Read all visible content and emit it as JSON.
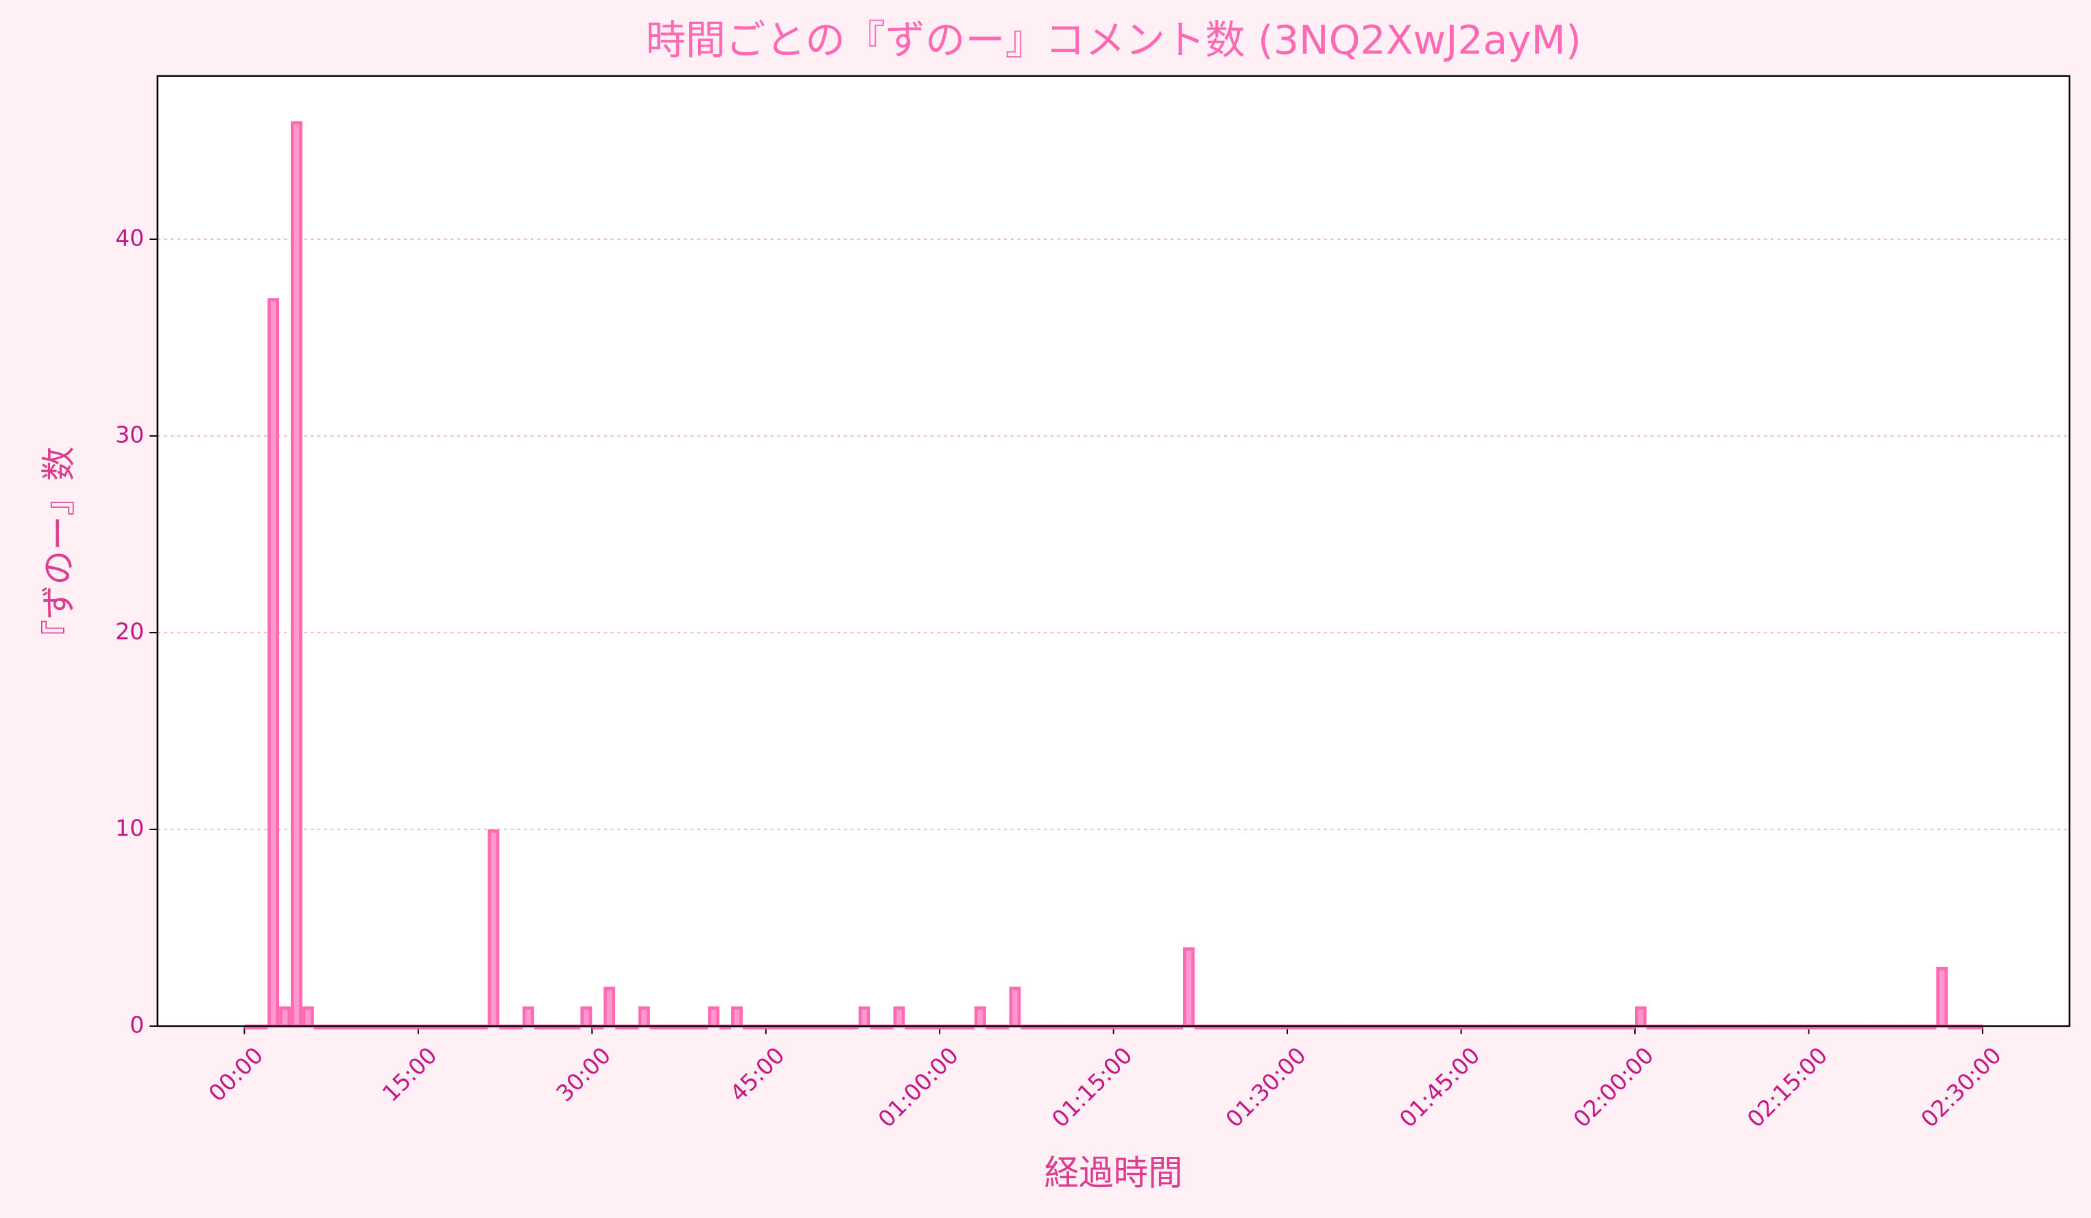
{
  "chart_data": {
    "type": "histogram",
    "title": "時間ごとの『ずのー』コメント数 (3NQ2XwJ2ayM)",
    "x_label": "経過時間",
    "y_label": "『ずのー』数",
    "bins": [
      0,
      1,
      2,
      3,
      4,
      5,
      6,
      7,
      8,
      9,
      10,
      11,
      12,
      13,
      14,
      15,
      16,
      17,
      18,
      19,
      20,
      21,
      22,
      23,
      24,
      25,
      26,
      27,
      28,
      29,
      30,
      31,
      32,
      33,
      34,
      35,
      36,
      37,
      38,
      39,
      40,
      41,
      42,
      43,
      44,
      45,
      46,
      47,
      48,
      49,
      50,
      51,
      52,
      53,
      54,
      55,
      56,
      57,
      58,
      59,
      60,
      61,
      62,
      63,
      64,
      65,
      66,
      67,
      68,
      69,
      70,
      71,
      72,
      73,
      74,
      75,
      76,
      77,
      78,
      79,
      80,
      81,
      82,
      83,
      84,
      85,
      86,
      87,
      88,
      89,
      90,
      91,
      92,
      93,
      94,
      95,
      96,
      97,
      98,
      99,
      100,
      101,
      102,
      103,
      104,
      105,
      106,
      107,
      108,
      109,
      110,
      111,
      112,
      113,
      114,
      115,
      116,
      117,
      118,
      119,
      120,
      121,
      122,
      123,
      124,
      125,
      126,
      127,
      128,
      129,
      130,
      131,
      132,
      133,
      134,
      135,
      136,
      137,
      138,
      139,
      140,
      141,
      142,
      143,
      144,
      145,
      146,
      147,
      148,
      149,
      150
    ],
    "values": [
      0,
      0,
      37,
      1,
      46,
      1,
      0,
      0,
      0,
      0,
      0,
      0,
      0,
      0,
      0,
      0,
      0,
      0,
      0,
      0,
      0,
      10,
      0,
      0,
      1,
      0,
      0,
      0,
      0,
      1,
      0,
      2,
      0,
      0,
      1,
      0,
      0,
      0,
      0,
      0,
      1,
      0,
      1,
      0,
      0,
      0,
      0,
      0,
      0,
      0,
      0,
      0,
      0,
      1,
      0,
      0,
      1,
      0,
      0,
      0,
      0,
      0,
      0,
      1,
      0,
      0,
      2,
      0,
      0,
      0,
      0,
      0,
      0,
      0,
      0,
      0,
      0,
      0,
      0,
      0,
      0,
      4,
      0,
      0,
      0,
      0,
      0,
      0,
      0,
      0,
      0,
      0,
      0,
      0,
      0,
      0,
      0,
      0,
      0,
      0,
      0,
      0,
      0,
      0,
      0,
      0,
      0,
      0,
      0,
      0,
      0,
      0,
      0,
      0,
      0,
      0,
      0,
      0,
      0,
      0,
      1,
      0,
      0,
      0,
      0,
      0,
      0,
      0,
      0,
      0,
      0,
      0,
      0,
      0,
      0,
      0,
      0,
      0,
      0,
      0,
      0,
      0,
      0,
      0,
      0,
      0,
      3,
      0,
      0,
      0
    ],
    "color": "#ff99cc",
    "edge_color": "#ff69b4",
    "xlim": [
      -7.5,
      157.5
    ],
    "xticks": [
      {
        "value": 0,
        "label": "00:00"
      },
      {
        "value": 15,
        "label": "15:00"
      },
      {
        "value": 30,
        "label": "30:00"
      },
      {
        "value": 45,
        "label": "45:00"
      },
      {
        "value": 60,
        "label": "01:00:00"
      },
      {
        "value": 75,
        "label": "01:15:00"
      },
      {
        "value": 90,
        "label": "01:30:00"
      },
      {
        "value": 105,
        "label": "01:45:00"
      },
      {
        "value": 120,
        "label": "02:00:00"
      },
      {
        "value": 135,
        "label": "02:15:00"
      },
      {
        "value": 150,
        "label": "02:30:00"
      }
    ],
    "ylim": [
      0,
      48.3
    ],
    "yticks": [
      0,
      10,
      20,
      30,
      40
    ],
    "grid": true
  }
}
